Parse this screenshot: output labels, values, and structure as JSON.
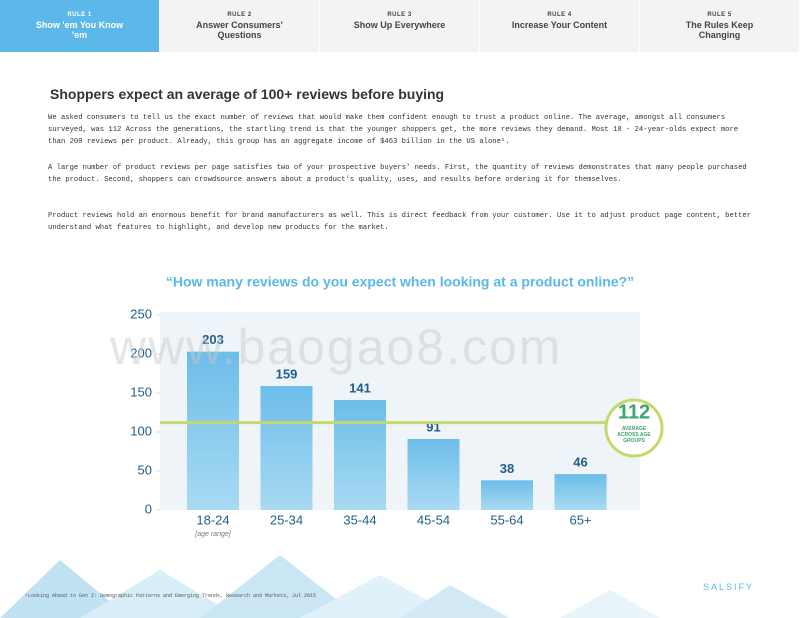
{
  "tabs": [
    {
      "rule": "RULE 1",
      "title": "Show 'em You Know 'em"
    },
    {
      "rule": "RULE 2",
      "title": "Answer Consumers' Questions"
    },
    {
      "rule": "RULE 3",
      "title": "Show Up Everywhere"
    },
    {
      "rule": "RULE 4",
      "title": "Increase Your Content"
    },
    {
      "rule": "RULE 5",
      "title": "The Rules Keep Changing"
    }
  ],
  "heading": "Shoppers  expect an average of 100+ reviews before buying",
  "paragraphs": [
    "We asked consumers to tell us the exact number of reviews that would make them confident enough to trust a product online. The average, amongst all consumers surveyed, was 112 Across the generations, the startling trend is that the younger shoppers get, the more reviews they demand. Most 18 - 24-year-olds expect more than 200 reviews per product. Already, this group has an aggregate income of $463 billion in the US alone¹.",
    "A large number of product reviews per page satisfies two of your prospective buyers' needs. First, the quantity of reviews demonstrates that many people purchased the product. Second, shoppers can crowdsource answers about a product's quality, uses, and results before ordering it for themselves.",
    "Product reviews hold an enormous benefit for brand manufacturers as well. This is direct feedback from your customer. Use it to adjust product page content, better understand what features to highlight, and develop new products for the market."
  ],
  "chart_data": {
    "type": "bar",
    "title": "“How many reviews do you expect when looking at a product online?”",
    "categories": [
      "18-24",
      "25-34",
      "35-44",
      "45-54",
      "55-64",
      "65+"
    ],
    "values": [
      203,
      159,
      141,
      91,
      38,
      46
    ],
    "color": "#6cbde9",
    "ylim": [
      0,
      250
    ],
    "yticks": [
      0,
      50,
      100,
      150,
      200,
      250
    ],
    "x_label": "[age range]",
    "average_line": {
      "value": 112,
      "label": "AVERAGE ACROSS AGE GROUPS",
      "color": "#c5d86d"
    }
  },
  "watermark": "www.baogao8.com",
  "footnote": "¹Looking Ahead to Gen Z: Demographic Patterns and Emerging Trends, Research and Markets, Jul 2015",
  "logo": "SALSIFY"
}
